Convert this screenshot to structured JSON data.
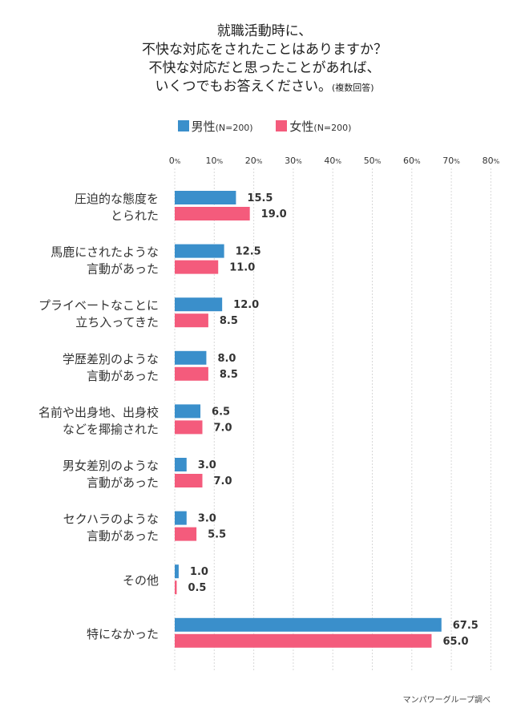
{
  "title": {
    "lines": [
      "就職活動時に、",
      "不快な対応をされたことはありますか？",
      "不快な対応だと思ったことがあれば、",
      "いくつでもお答えください。"
    ],
    "note": "(複数回答)"
  },
  "legend": [
    {
      "label": "男性",
      "n": "(N=200)",
      "color": "#3a8fcb"
    },
    {
      "label": "女性",
      "n": "(N=200)",
      "color": "#f45b7c"
    }
  ],
  "source": "マンパワーグループ調べ",
  "chart_data": {
    "type": "bar",
    "orientation": "horizontal",
    "categories": [
      [
        "圧迫的な態度を",
        "とられた"
      ],
      [
        "馬鹿にされたような",
        "言動があった"
      ],
      [
        "プライベートなことに",
        "立ち入ってきた"
      ],
      [
        "学歴差別のような",
        "言動があった"
      ],
      [
        "名前や出身地、出身校",
        "などを揶揄された"
      ],
      [
        "男女差別のような",
        "言動があった"
      ],
      [
        "セクハラのような",
        "言動があった"
      ],
      [
        "その他"
      ],
      [
        "特になかった"
      ]
    ],
    "series": [
      {
        "name": "男性",
        "values": [
          15.5,
          12.5,
          12.0,
          8.0,
          6.5,
          3.0,
          3.0,
          1.0,
          67.5
        ],
        "color": "#3a8fcb"
      },
      {
        "name": "女性",
        "values": [
          19.0,
          11.0,
          8.5,
          8.5,
          7.0,
          7.0,
          5.5,
          0.5,
          65.0
        ],
        "color": "#f45b7c"
      }
    ],
    "xlim": [
      0,
      80
    ],
    "xticks": [
      "0%",
      "10%",
      "20%",
      "30%",
      "40%",
      "50%",
      "60%",
      "70%",
      "80%"
    ],
    "grid": true,
    "legend_position": "top-center"
  }
}
